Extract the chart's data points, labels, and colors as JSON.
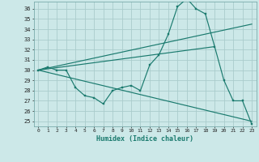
{
  "xlabel": "Humidex (Indice chaleur)",
  "bg_color": "#cce8e8",
  "grid_color": "#aacccc",
  "line_color": "#1a7a6e",
  "xlim": [
    -0.5,
    23.5
  ],
  "ylim": [
    24.5,
    36.7
  ],
  "yticks": [
    25,
    26,
    27,
    28,
    29,
    30,
    31,
    32,
    33,
    34,
    35,
    36
  ],
  "xticks": [
    0,
    1,
    2,
    3,
    4,
    5,
    6,
    7,
    8,
    9,
    10,
    11,
    12,
    13,
    14,
    15,
    16,
    17,
    18,
    19,
    20,
    21,
    22,
    23
  ],
  "line1_x": [
    0,
    1,
    2,
    3,
    4,
    5,
    6,
    7,
    8,
    9,
    10,
    11,
    12,
    13,
    14,
    15,
    16,
    17,
    18,
    19,
    20,
    21,
    22,
    23
  ],
  "line1_y": [
    30.0,
    30.3,
    30.0,
    30.0,
    28.3,
    27.5,
    27.3,
    26.7,
    28.0,
    28.3,
    28.5,
    28.0,
    30.5,
    31.5,
    33.5,
    36.2,
    37.0,
    36.0,
    35.5,
    32.3,
    29.0,
    27.0,
    27.0,
    24.7
  ],
  "line2_x": [
    0,
    23
  ],
  "line2_y": [
    30.0,
    34.5
  ],
  "line3_x": [
    0,
    23
  ],
  "line3_y": [
    30.0,
    25.0
  ],
  "line4_x": [
    0,
    19
  ],
  "line4_y": [
    30.0,
    32.3
  ]
}
